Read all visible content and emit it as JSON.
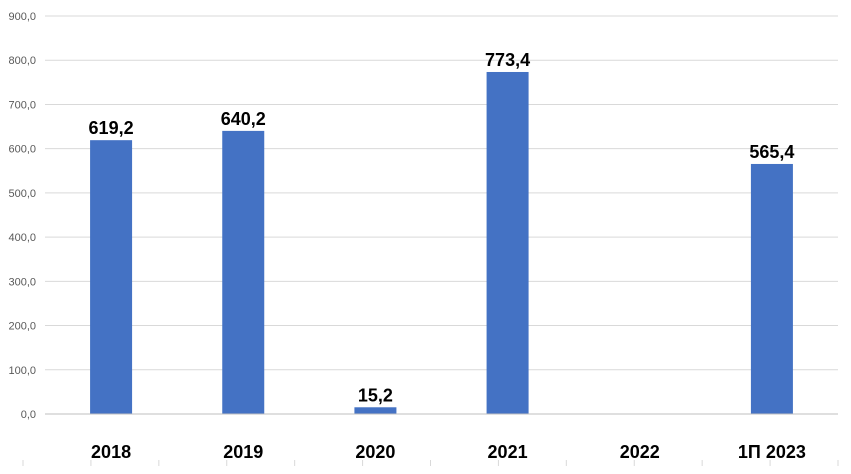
{
  "chart_data": {
    "type": "bar",
    "categories": [
      "2018",
      "2019",
      "2020",
      "2021",
      "2022",
      "1П 2023"
    ],
    "values": [
      619.2,
      640.2,
      15.2,
      773.4,
      null,
      565.4
    ],
    "data_labels": [
      "619,2",
      "640,2",
      "15,2",
      "773,4",
      "",
      "565,4"
    ],
    "y_ticks": [
      {
        "value": 0,
        "label": "0,0"
      },
      {
        "value": 100,
        "label": "100,0"
      },
      {
        "value": 200,
        "label": "200,0"
      },
      {
        "value": 300,
        "label": "300,0"
      },
      {
        "value": 400,
        "label": "400,0"
      },
      {
        "value": 500,
        "label": "500,0"
      },
      {
        "value": 600,
        "label": "600,0"
      },
      {
        "value": 700,
        "label": "700,0"
      },
      {
        "value": 800,
        "label": "800,0"
      },
      {
        "value": 900,
        "label": "900,0"
      }
    ],
    "ylim": [
      0,
      900
    ],
    "title": "",
    "xlabel": "",
    "ylabel": "",
    "grid": true,
    "legend": "none",
    "bar_color": "#4472c4"
  }
}
